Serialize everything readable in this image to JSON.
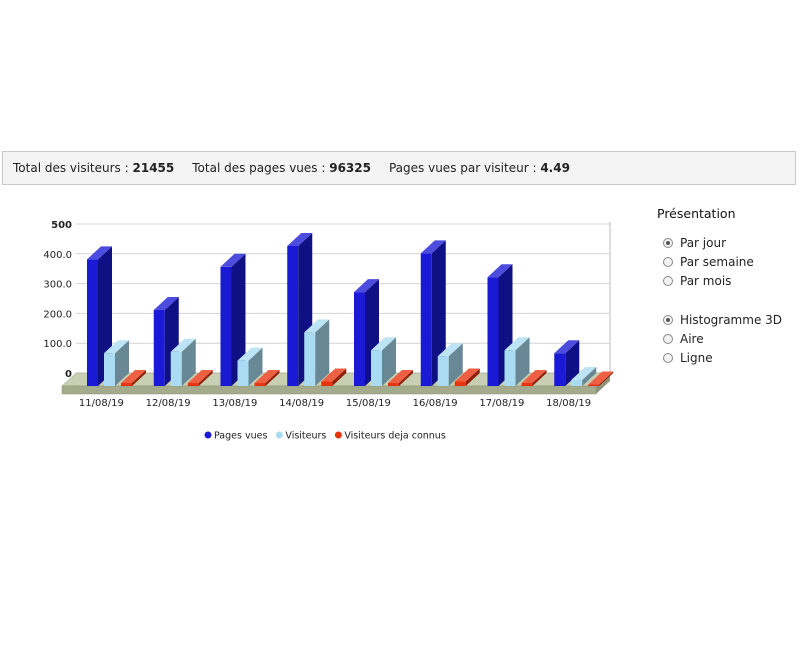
{
  "stats": {
    "visitors_label": "Total des visiteurs :",
    "visitors_value": "21455",
    "pages_label": "Total des pages vues :",
    "pages_value": "96325",
    "ratio_label": "Pages vues par visiteur :",
    "ratio_value": "4.49"
  },
  "presentation": {
    "title": "Présentation",
    "period_options": [
      {
        "label": "Par jour",
        "checked": true
      },
      {
        "label": "Par semaine",
        "checked": false
      },
      {
        "label": "Par mois",
        "checked": false
      }
    ],
    "type_options": [
      {
        "label": "Histogramme 3D",
        "checked": true
      },
      {
        "label": "Aire",
        "checked": false
      },
      {
        "label": "Ligne",
        "checked": false
      }
    ]
  },
  "chart_data": {
    "type": "bar",
    "categories": [
      "11/08/19",
      "12/08/19",
      "13/08/19",
      "14/08/19",
      "15/08/19",
      "16/08/19",
      "17/08/19",
      "18/08/19"
    ],
    "series": [
      {
        "name": "Pages vues",
        "color": "#1a1ad6",
        "values": [
          425,
          255,
          400,
          470,
          315,
          445,
          365,
          110
        ]
      },
      {
        "name": "Visiteurs",
        "color": "#a9dcf2",
        "values": [
          110,
          115,
          85,
          180,
          120,
          100,
          120,
          20
        ]
      },
      {
        "name": "Visiteurs deja connus",
        "color": "#e8330f",
        "values": [
          10,
          10,
          10,
          15,
          10,
          15,
          10,
          5
        ]
      }
    ],
    "yticks": [
      "0",
      "100.0",
      "200.0",
      "300.0",
      "400.0",
      "500"
    ],
    "ylim": [
      0,
      500
    ],
    "grid": true,
    "legend_position": "bottom",
    "three_d": true
  }
}
